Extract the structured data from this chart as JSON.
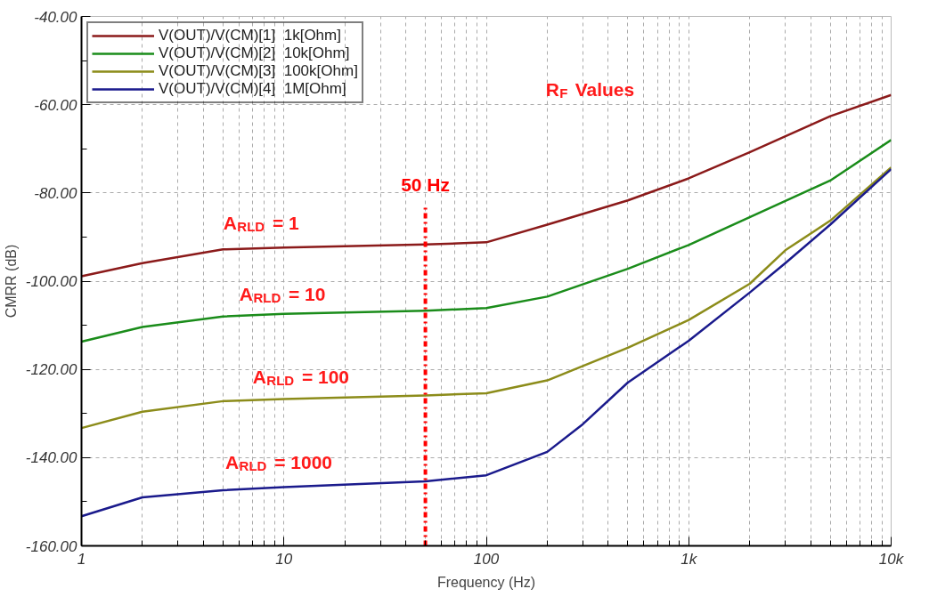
{
  "chart_data": {
    "type": "line",
    "xlabel": "Frequency (Hz)",
    "ylabel": "CMRR (dB)",
    "log": "x",
    "grid": true,
    "legend": "top left",
    "line_style": "solid",
    "marker": "none",
    "xlim": [
      1,
      10000
    ],
    "ylim": [
      -160,
      -40
    ],
    "xticks": [
      1,
      10,
      100,
      {
        "value": 1000,
        "label": "1k"
      },
      {
        "value": 10000,
        "label": "10k"
      }
    ],
    "yticks": [
      {
        "value": -160,
        "label": "-160.00"
      },
      {
        "value": -140,
        "label": "-140.00"
      },
      {
        "value": -120,
        "label": "-120.00"
      },
      {
        "value": -100,
        "label": "-100.00"
      },
      {
        "value": -80,
        "label": "-80.00"
      },
      {
        "value": -60,
        "label": "-60.00"
      },
      {
        "value": -40,
        "label": "-40.00"
      }
    ],
    "series": [
      {
        "name": "V(OUT)/V(CM)[1]  1k[Ohm]",
        "color": "#8b1a1a",
        "x": [
          1,
          2,
          5,
          10,
          50,
          100,
          200,
          500,
          1000,
          2000,
          5000,
          10000
        ],
        "values": [
          -98.9,
          -95.9,
          -92.8,
          -92.4,
          -91.7,
          -91.2,
          -87.2,
          -81.7,
          -76.7,
          -70.8,
          -62.6,
          -57.8
        ]
      },
      {
        "name": "V(OUT)/V(CM)[2]  10k[Ohm]",
        "color": "#1a8c1a",
        "x": [
          1,
          2,
          5,
          10,
          50,
          100,
          200,
          500,
          1000,
          2000,
          5000,
          10000
        ],
        "values": [
          -113.7,
          -110.4,
          -108.0,
          -107.4,
          -106.7,
          -106.1,
          -103.5,
          -97.2,
          -91.8,
          -85.5,
          -77.2,
          -68.0
        ]
      },
      {
        "name": "V(OUT)/V(CM)[3]  100k[Ohm]",
        "color": "#8c8c1a",
        "x": [
          1,
          2,
          5,
          10,
          50,
          100,
          200,
          500,
          1000,
          2000,
          3000,
          5000,
          10000
        ],
        "values": [
          -133.3,
          -129.6,
          -127.2,
          -126.7,
          -125.9,
          -125.4,
          -122.5,
          -115.1,
          -108.8,
          -100.6,
          -93.0,
          -86.3,
          -74.2
        ]
      },
      {
        "name": "V(OUT)/V(CM)[4]  1M[Ohm]",
        "color": "#1a1a8c",
        "x": [
          1,
          2,
          5,
          10,
          50,
          100,
          200,
          300,
          500,
          1000,
          2000,
          3000,
          5000,
          10000
        ],
        "values": [
          -153.3,
          -149.0,
          -147.4,
          -146.7,
          -145.4,
          -144.0,
          -138.7,
          -132.4,
          -123.0,
          -113.5,
          -102.6,
          -95.9,
          -87.2,
          -74.6
        ]
      }
    ],
    "ref_lines": [
      {
        "axis": "x",
        "value": 50,
        "label": "50 Hz",
        "color": "#ff0000",
        "line_style": "dashdot"
      }
    ],
    "annotations": [
      "A$_{RLD}$ = 1",
      "A$_{RLD}$ = 10",
      "A$_{RLD}$ = 100",
      "A$_{RLD}$ = 1000",
      "R$_{F}$ Values"
    ]
  }
}
